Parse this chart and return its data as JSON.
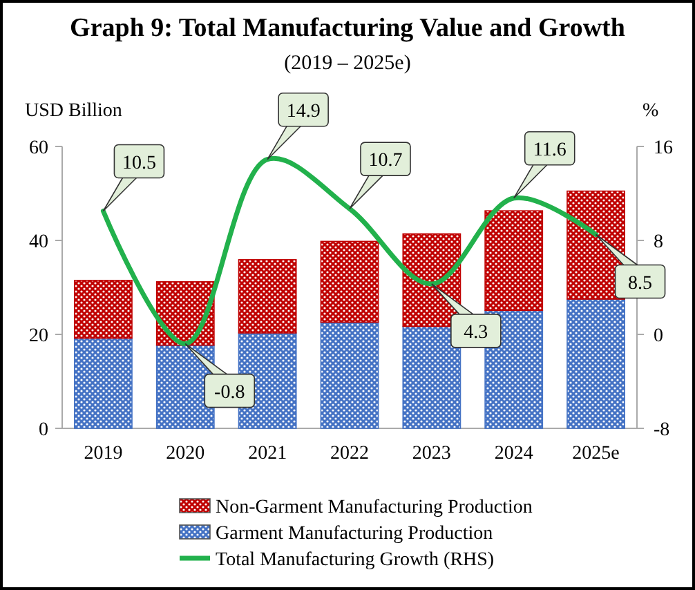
{
  "chart_data": {
    "type": "bar",
    "title": "Graph 9: Total Manufacturing Value and Growth",
    "subtitle": "(2019 – 2025e)",
    "ylabel": "USD Billion",
    "y2label": "%",
    "categories": [
      "2019",
      "2020",
      "2021",
      "2022",
      "2023",
      "2024",
      "2025e"
    ],
    "stacked": true,
    "series": [
      {
        "name": "Garment Manufacturing Production",
        "color": "#4472c4",
        "values": [
          19.2,
          17.7,
          20.3,
          22.6,
          21.7,
          25.1,
          27.5
        ]
      },
      {
        "name": "Non-Garment Manufacturing Production",
        "color": "#c00000",
        "values": [
          12.3,
          13.5,
          15.6,
          17.2,
          19.7,
          21.2,
          23.0
        ]
      },
      {
        "name": "Total Manufacturing Growth (RHS)",
        "type": "line",
        "axis": "y2",
        "color": "#22b14c",
        "values": [
          10.5,
          -0.8,
          14.9,
          10.7,
          4.3,
          11.6,
          8.5
        ],
        "data_labels": true
      }
    ],
    "ylim": [
      0,
      60
    ],
    "yticks": [
      0,
      20,
      40,
      60
    ],
    "y2lim": [
      -8,
      16
    ],
    "y2ticks": [
      -8,
      0,
      8,
      16
    ],
    "legend": "bottom",
    "grid": false
  }
}
